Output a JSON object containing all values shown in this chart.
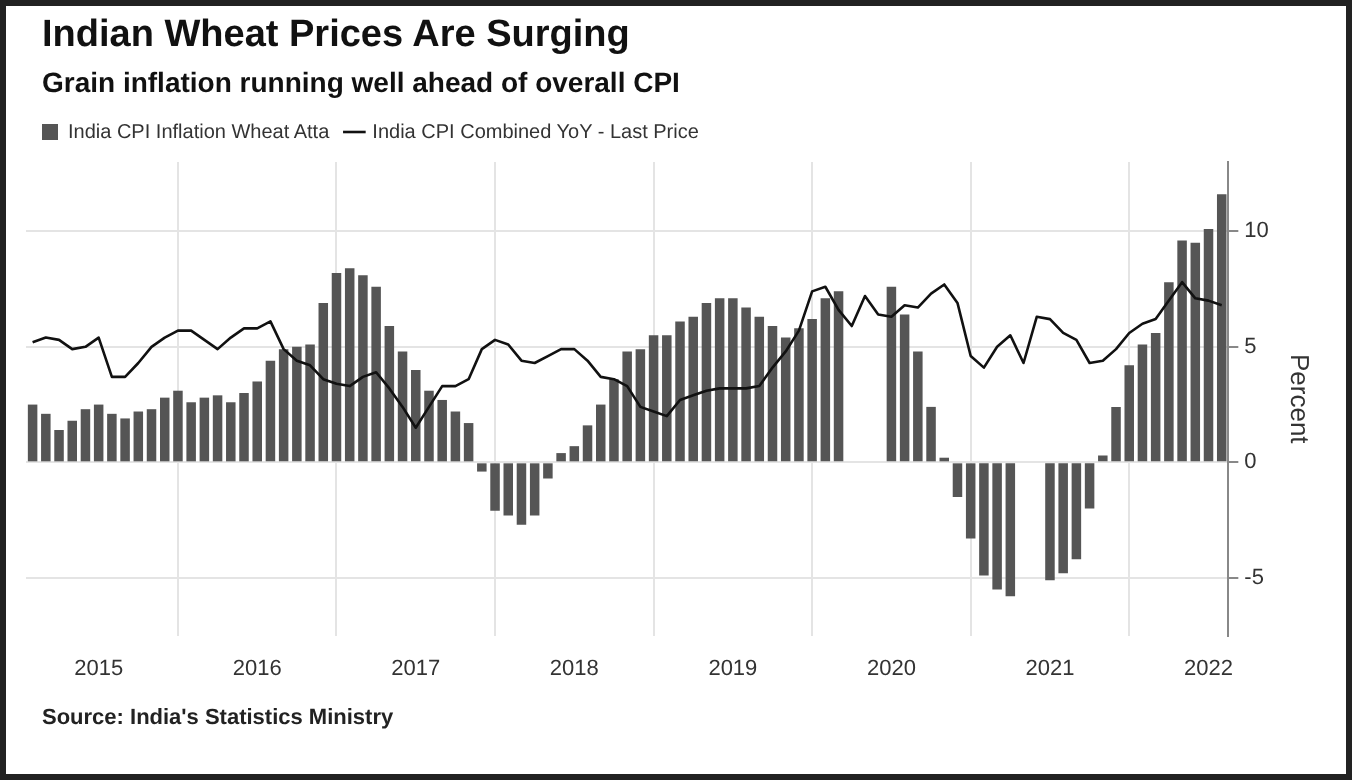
{
  "chart_data": {
    "type": "bar",
    "title": "Indian Wheat Prices Are Surging",
    "subtitle": "Grain inflation running well ahead of overall CPI",
    "ylabel": "Percent",
    "categories": [
      null,
      null,
      null,
      null,
      null,
      "2015",
      null,
      null,
      null,
      null,
      null,
      null,
      null,
      null,
      null,
      null,
      null,
      "2016",
      null,
      null,
      null,
      null,
      null,
      null,
      null,
      null,
      null,
      null,
      null,
      "2017",
      null,
      null,
      null,
      null,
      null,
      null,
      null,
      null,
      null,
      null,
      null,
      "2018",
      null,
      null,
      null,
      null,
      null,
      null,
      null,
      null,
      null,
      null,
      null,
      "2019",
      null,
      null,
      null,
      null,
      null,
      null,
      null,
      null,
      null,
      null,
      null,
      "2020",
      null,
      null,
      null,
      null,
      null,
      null,
      null,
      null,
      null,
      null,
      null,
      "2021",
      null,
      null,
      null,
      null,
      null,
      null,
      null,
      null,
      null,
      null,
      null,
      "2022",
      null
    ],
    "series": [
      {
        "name": "India CPI Inflation Wheat Atta",
        "color": "#555555",
        "values": [
          2.5,
          2.1,
          1.4,
          1.8,
          2.3,
          2.5,
          2.1,
          1.9,
          2.2,
          2.3,
          2.8,
          3.1,
          2.6,
          2.8,
          2.9,
          2.6,
          3.0,
          3.5,
          4.4,
          4.9,
          5.0,
          5.1,
          6.9,
          8.2,
          8.4,
          8.1,
          7.6,
          5.9,
          4.8,
          4.0,
          3.1,
          2.7,
          2.2,
          1.7,
          -0.4,
          -2.1,
          -2.3,
          -2.7,
          -2.3,
          -0.7,
          0.4,
          0.7,
          1.6,
          2.5,
          3.6,
          4.8,
          4.9,
          5.5,
          5.5,
          6.1,
          6.3,
          6.9,
          7.1,
          7.1,
          6.7,
          6.3,
          5.9,
          5.4,
          5.8,
          6.2,
          7.1,
          7.4,
          null,
          null,
          null,
          7.6,
          6.4,
          4.8,
          2.4,
          0.2,
          -1.5,
          -3.3,
          -4.9,
          -5.5,
          -5.8,
          null,
          null,
          -5.1,
          -4.8,
          -4.2,
          -2.0,
          0.3,
          2.4,
          4.2,
          5.1,
          5.6,
          7.8,
          9.6,
          9.5,
          10.1,
          11.6
        ]
      },
      {
        "name": "India CPI Combined YoY - Last Price",
        "type": "line",
        "color": "#111111",
        "values": [
          5.2,
          5.4,
          5.3,
          4.9,
          5.0,
          5.4,
          3.7,
          3.7,
          4.3,
          5.0,
          5.4,
          5.7,
          5.7,
          5.3,
          4.9,
          5.4,
          5.8,
          5.8,
          6.1,
          4.9,
          4.4,
          4.2,
          3.6,
          3.4,
          3.3,
          3.7,
          3.9,
          3.2,
          2.4,
          1.5,
          2.4,
          3.3,
          3.3,
          3.6,
          4.9,
          5.3,
          5.1,
          4.4,
          4.3,
          4.6,
          4.9,
          4.9,
          4.4,
          3.7,
          3.6,
          3.3,
          2.4,
          2.2,
          2.0,
          2.7,
          2.9,
          3.1,
          3.2,
          3.2,
          3.2,
          3.3,
          4.1,
          4.8,
          5.7,
          7.4,
          7.6,
          6.6,
          5.9,
          7.2,
          6.4,
          6.3,
          6.8,
          6.7,
          7.3,
          7.7,
          6.9,
          4.6,
          4.1,
          5.0,
          5.5,
          4.3,
          6.3,
          6.2,
          5.6,
          5.3,
          4.3,
          4.4,
          4.9,
          5.6,
          6.0,
          6.2,
          7.0,
          7.8,
          7.1,
          7.0,
          6.8
        ]
      }
    ],
    "ylim": [
      -7.5,
      13
    ],
    "yticks": [
      -5,
      0,
      5,
      10
    ],
    "grid": true,
    "legend": "top left",
    "marker": "none",
    "line_style": "solid",
    "annotations": [
      "Source: India's Statistics Ministry"
    ]
  }
}
